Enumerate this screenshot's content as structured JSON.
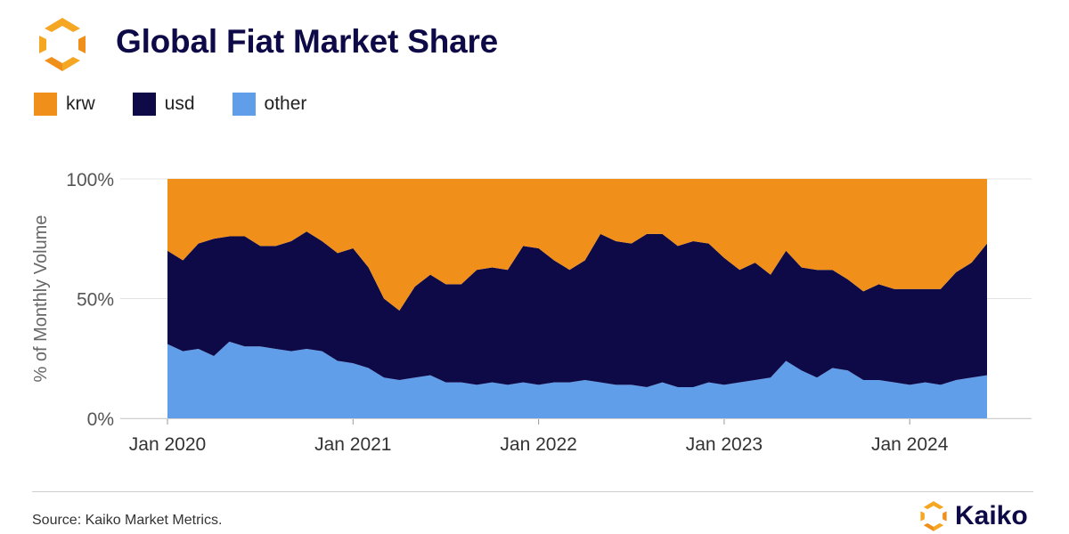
{
  "header": {
    "title": "Global Fiat Market Share",
    "logo_icon": "kaiko-logo-icon"
  },
  "colors": {
    "krw": "#f0901a",
    "usd": "#0e0a47",
    "other": "#609ee9",
    "title": "#0e0a47"
  },
  "legend": {
    "items": [
      {
        "label": "krw",
        "color": "#f0901a"
      },
      {
        "label": "usd",
        "color": "#0e0a47"
      },
      {
        "label": "other",
        "color": "#609ee9"
      }
    ]
  },
  "footer": {
    "source": "Source: Kaiko Market Metrics.",
    "brand": "Kaiko"
  },
  "chart_data": {
    "type": "area",
    "stacked": true,
    "ylabel": "% of Monthly Volume",
    "yticks": [
      "0%",
      "50%",
      "100%"
    ],
    "xticks": [
      "Jan 2020",
      "Jan 2021",
      "Jan 2022",
      "Jan 2023",
      "Jan 2024"
    ],
    "ylim": [
      0,
      100
    ],
    "grid": true,
    "legend_position": "top-left",
    "x_start": "2020-01",
    "x_end": "2024-06",
    "x": [
      "2020-01",
      "2020-02",
      "2020-03",
      "2020-04",
      "2020-05",
      "2020-06",
      "2020-07",
      "2020-08",
      "2020-09",
      "2020-10",
      "2020-11",
      "2020-12",
      "2021-01",
      "2021-02",
      "2021-03",
      "2021-04",
      "2021-05",
      "2021-06",
      "2021-07",
      "2021-08",
      "2021-09",
      "2021-10",
      "2021-11",
      "2021-12",
      "2022-01",
      "2022-02",
      "2022-03",
      "2022-04",
      "2022-05",
      "2022-06",
      "2022-07",
      "2022-08",
      "2022-09",
      "2022-10",
      "2022-11",
      "2022-12",
      "2023-01",
      "2023-02",
      "2023-03",
      "2023-04",
      "2023-05",
      "2023-06",
      "2023-07",
      "2023-08",
      "2023-09",
      "2023-10",
      "2023-11",
      "2023-12",
      "2024-01",
      "2024-02",
      "2024-03",
      "2024-04",
      "2024-05",
      "2024-06"
    ],
    "series": [
      {
        "name": "other",
        "values": [
          31,
          28,
          29,
          26,
          32,
          30,
          30,
          29,
          28,
          29,
          28,
          24,
          23,
          21,
          17,
          16,
          17,
          18,
          15,
          15,
          14,
          15,
          14,
          15,
          14,
          15,
          15,
          16,
          15,
          14,
          14,
          13,
          15,
          13,
          13,
          15,
          14,
          15,
          16,
          17,
          24,
          20,
          17,
          21,
          20,
          16,
          16,
          15,
          14,
          15,
          14,
          16,
          17,
          18
        ]
      },
      {
        "name": "usd",
        "values": [
          39,
          38,
          44,
          49,
          44,
          46,
          42,
          43,
          46,
          49,
          46,
          45,
          48,
          42,
          33,
          29,
          38,
          42,
          41,
          41,
          48,
          48,
          48,
          57,
          57,
          51,
          47,
          50,
          62,
          60,
          59,
          64,
          62,
          59,
          61,
          58,
          53,
          47,
          49,
          43,
          46,
          43,
          45,
          41,
          38,
          37,
          40,
          39,
          40,
          39,
          40,
          45,
          48,
          55
        ]
      },
      {
        "name": "krw",
        "values": [
          30,
          34,
          27,
          25,
          24,
          24,
          28,
          28,
          26,
          22,
          26,
          31,
          29,
          37,
          50,
          55,
          45,
          40,
          44,
          44,
          38,
          37,
          38,
          28,
          29,
          34,
          38,
          34,
          23,
          26,
          27,
          23,
          23,
          28,
          26,
          27,
          33,
          38,
          35,
          40,
          30,
          37,
          38,
          38,
          42,
          47,
          44,
          46,
          46,
          46,
          46,
          39,
          35,
          27
        ]
      }
    ]
  }
}
